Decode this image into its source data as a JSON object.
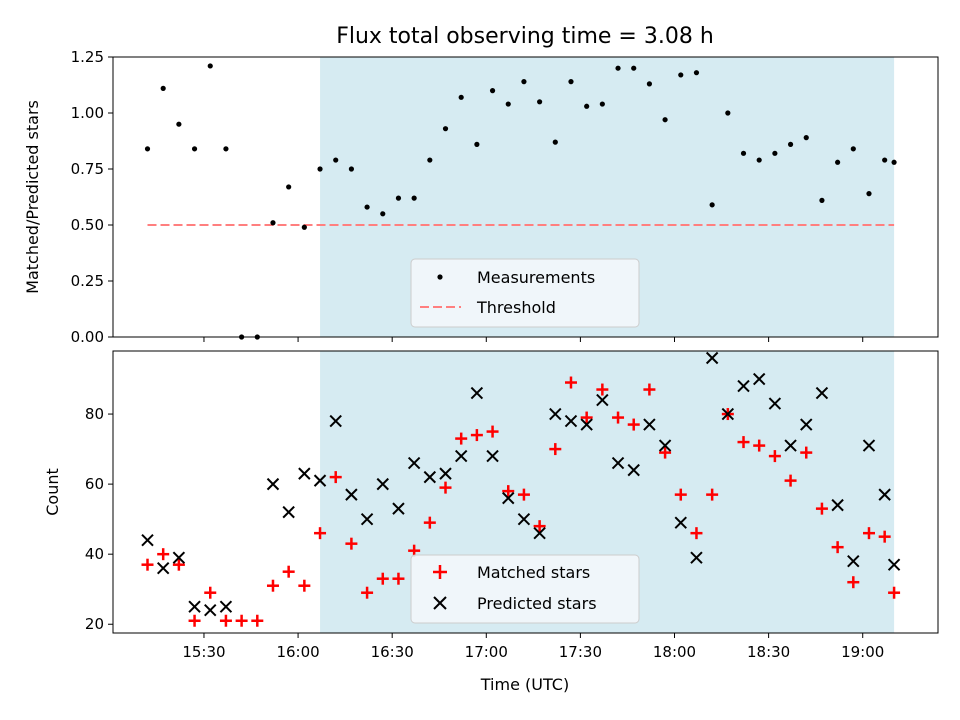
{
  "title": "Flux total observing time = 3.08 h",
  "shaded_color": "#add8e6",
  "colors": {
    "measurement": "#000000",
    "threshold": "#ff7f7f",
    "matched": "#ff0000",
    "predicted": "#000000"
  },
  "chart_data": [
    {
      "type": "scatter",
      "panel": "top",
      "ylabel": "Matched/Predicted stars",
      "ylim": [
        0,
        1.25
      ],
      "yticks": [
        0.0,
        0.25,
        0.5,
        0.75,
        1.0,
        1.25
      ],
      "ytick_labels": [
        "0.00",
        "0.25",
        "0.50",
        "0.75",
        "1.00",
        "1.25"
      ],
      "xlim": [
        "15:01",
        "19:24"
      ],
      "shaded_region": [
        "16:07",
        "19:10"
      ],
      "legend": {
        "placement": "lower-center",
        "entries": [
          "Measurements",
          "Threshold"
        ]
      },
      "threshold": {
        "name": "Threshold",
        "value": 0.5,
        "x": [
          "15:12",
          "19:10"
        ],
        "style": "dashed"
      },
      "series": [
        {
          "name": "Measurements",
          "marker": "dot",
          "x": [
            "15:12",
            "15:17",
            "15:22",
            "15:27",
            "15:32",
            "15:37",
            "15:42",
            "15:47",
            "15:52",
            "15:57",
            "16:02",
            "16:07",
            "16:12",
            "16:17",
            "16:22",
            "16:27",
            "16:32",
            "16:37",
            "16:42",
            "16:47",
            "16:52",
            "16:57",
            "17:02",
            "17:07",
            "17:12",
            "17:17",
            "17:22",
            "17:27",
            "17:32",
            "17:37",
            "17:42",
            "17:47",
            "17:52",
            "17:57",
            "18:02",
            "18:07",
            "18:12",
            "18:17",
            "18:22",
            "18:27",
            "18:32",
            "18:37",
            "18:42",
            "18:47",
            "18:52",
            "18:57",
            "19:02",
            "19:07",
            "19:10"
          ],
          "y": [
            0.84,
            1.11,
            0.95,
            0.84,
            1.21,
            0.84,
            0.0,
            0.0,
            0.51,
            0.67,
            0.49,
            0.75,
            0.79,
            0.75,
            0.58,
            0.55,
            0.62,
            0.62,
            0.79,
            0.93,
            1.07,
            0.86,
            1.1,
            1.04,
            1.14,
            1.05,
            0.87,
            1.14,
            1.03,
            1.04,
            1.2,
            1.2,
            1.13,
            0.97,
            1.17,
            1.18,
            0.59,
            1.0,
            0.82,
            0.79,
            0.82,
            0.86,
            0.89,
            0.61,
            0.78,
            0.84,
            0.64,
            0.79,
            0.78
          ]
        }
      ]
    },
    {
      "type": "scatter",
      "panel": "bottom",
      "xlabel": "Time (UTC)",
      "ylabel": "Count",
      "ylim": [
        17.5,
        98
      ],
      "yticks": [
        20,
        40,
        60,
        80
      ],
      "ytick_labels": [
        "20",
        "40",
        "60",
        "80"
      ],
      "xlim": [
        "15:01",
        "19:24"
      ],
      "xticks": [
        "15:30",
        "16:00",
        "16:30",
        "17:00",
        "17:30",
        "18:00",
        "18:30",
        "19:00"
      ],
      "shaded_region": [
        "16:07",
        "19:10"
      ],
      "legend": {
        "placement": "lower-center",
        "entries": [
          "Matched stars",
          "Predicted stars"
        ]
      },
      "series": [
        {
          "name": "Matched stars",
          "marker": "plus",
          "x": [
            "15:12",
            "15:17",
            "15:22",
            "15:27",
            "15:32",
            "15:37",
            "15:42",
            "15:47",
            "15:52",
            "15:57",
            "16:02",
            "16:07",
            "16:12",
            "16:17",
            "16:22",
            "16:27",
            "16:32",
            "16:37",
            "16:42",
            "16:47",
            "16:52",
            "16:57",
            "17:02",
            "17:07",
            "17:12",
            "17:17",
            "17:22",
            "17:27",
            "17:32",
            "17:37",
            "17:42",
            "17:47",
            "17:52",
            "17:57",
            "18:02",
            "18:07",
            "18:12",
            "18:17",
            "18:22",
            "18:27",
            "18:32",
            "18:37",
            "18:42",
            "18:47",
            "18:52",
            "18:57",
            "19:02",
            "19:07",
            "19:10"
          ],
          "y": [
            37,
            40,
            37,
            21,
            29,
            21,
            21,
            21,
            31,
            35,
            31,
            46,
            62,
            43,
            29,
            33,
            33,
            41,
            49,
            59,
            73,
            74,
            75,
            58,
            57,
            48,
            70,
            89,
            79,
            87,
            79,
            77,
            87,
            69,
            57,
            46,
            57,
            80,
            72,
            71,
            68,
            61,
            69,
            53,
            42,
            32,
            46,
            45,
            29
          ]
        },
        {
          "name": "Predicted stars",
          "marker": "x",
          "x": [
            "15:12",
            "15:17",
            "15:22",
            "15:27",
            "15:32",
            "15:37",
            "15:52",
            "15:57",
            "16:02",
            "16:07",
            "16:12",
            "16:17",
            "16:22",
            "16:27",
            "16:32",
            "16:37",
            "16:42",
            "16:47",
            "16:52",
            "16:57",
            "17:02",
            "17:07",
            "17:12",
            "17:17",
            "17:22",
            "17:27",
            "17:32",
            "17:37",
            "17:42",
            "17:47",
            "17:52",
            "17:57",
            "18:02",
            "18:07",
            "18:12",
            "18:17",
            "18:22",
            "18:27",
            "18:32",
            "18:37",
            "18:42",
            "18:47",
            "18:52",
            "18:57",
            "19:02",
            "19:07",
            "19:10"
          ],
          "y": [
            44,
            36,
            39,
            25,
            24,
            25,
            60,
            52,
            63,
            61,
            78,
            57,
            50,
            60,
            53,
            66,
            62,
            63,
            68,
            86,
            68,
            56,
            50,
            46,
            80,
            78,
            77,
            84,
            66,
            64,
            77,
            71,
            49,
            39,
            96,
            80,
            88,
            90,
            83,
            71,
            77,
            86,
            54,
            38,
            71,
            57,
            37
          ]
        }
      ]
    }
  ]
}
